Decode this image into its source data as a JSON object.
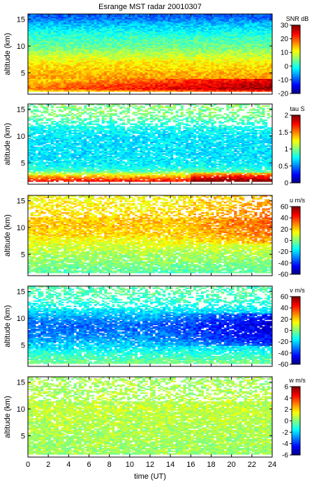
{
  "chart_data": {
    "type": "heatmap",
    "title": "Esrange MST radar 20010307",
    "xlabel": "time (UT)",
    "xlim": [
      0,
      24
    ],
    "xticks": [
      0,
      2,
      4,
      6,
      8,
      10,
      12,
      14,
      16,
      18,
      20,
      22,
      24
    ],
    "ylabel": "altitude (km)",
    "ylim": [
      1,
      16
    ],
    "yticks": [
      5,
      10,
      15
    ],
    "colormap": "jet",
    "panels": [
      {
        "quantity": "SNR",
        "unit": "dB",
        "clim": [
          -20,
          30
        ],
        "cticks": [
          -20,
          -10,
          0,
          10,
          20,
          30
        ],
        "profile": {
          "alt": [
            1.5,
            2,
            3,
            4,
            5,
            6,
            7,
            8,
            10,
            12,
            14,
            15.5
          ],
          "val": [
            12,
            22,
            19,
            16,
            15,
            13,
            12,
            9,
            4,
            1,
            -4,
            -9
          ]
        }
      },
      {
        "quantity": "tau",
        "unit": "S",
        "clim": [
          0,
          2
        ],
        "cticks": [
          0,
          0.5,
          1,
          1.5,
          2
        ],
        "profile": {
          "alt": [
            1.5,
            2.5,
            3.5,
            4.5,
            6,
            8,
            10,
            12,
            14
          ],
          "val": [
            1.8,
            1.4,
            0.9,
            0.75,
            0.7,
            0.7,
            0.7,
            0.8,
            1.0
          ]
        }
      },
      {
        "quantity": "u",
        "unit": "m/s",
        "clim": [
          -60,
          60
        ],
        "cticks": [
          -60,
          -40,
          -20,
          0,
          20,
          40,
          60
        ],
        "profile": {
          "alt": [
            1.5,
            3,
            5,
            7,
            9,
            11,
            13,
            15
          ],
          "val": [
            -5,
            0,
            5,
            12,
            20,
            22,
            18,
            15
          ]
        }
      },
      {
        "quantity": "v",
        "unit": "m/s",
        "clim": [
          -60,
          60
        ],
        "cticks": [
          -60,
          -40,
          -20,
          0,
          20,
          40,
          60
        ],
        "profile": {
          "alt": [
            1.5,
            3,
            5,
            7,
            9,
            11,
            13,
            15
          ],
          "val": [
            0,
            -8,
            -20,
            -30,
            -32,
            -20,
            -10,
            -5
          ]
        }
      },
      {
        "quantity": "w",
        "unit": "m/s",
        "clim": [
          -6,
          6
        ],
        "cticks": [
          -6,
          -4,
          -2,
          0,
          2,
          4,
          6
        ],
        "profile": {
          "alt": [
            1.5,
            5,
            10,
            15
          ],
          "val": [
            0.3,
            0.5,
            0.8,
            0.4
          ]
        }
      }
    ]
  }
}
